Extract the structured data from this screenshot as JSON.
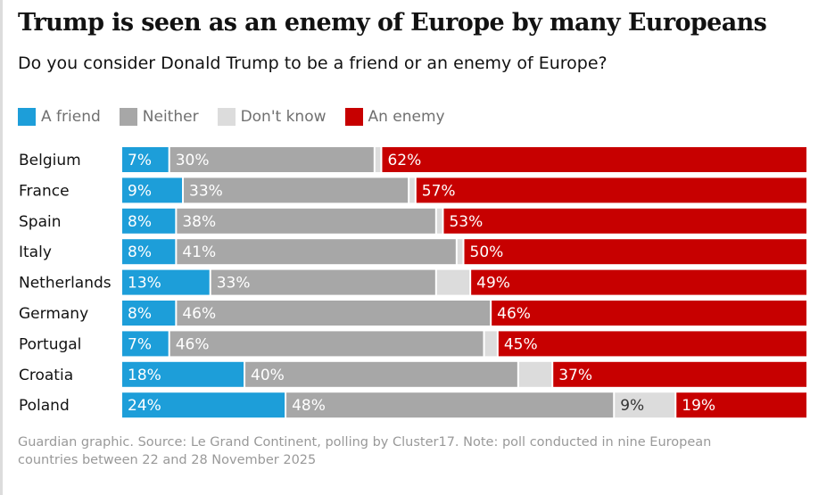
{
  "header": {
    "title": "Trump is seen as an enemy of Europe by many Europeans",
    "subtitle": "Do you consider Donald Trump to be a friend or an enemy of Europe?"
  },
  "colors": {
    "friend": "#1d9ed9",
    "neither": "#a7a7a7",
    "dont_know": "#dcdcdc",
    "enemy": "#c70000"
  },
  "legend": [
    {
      "label": "A friend",
      "color_key": "friend"
    },
    {
      "label": "Neither",
      "color_key": "neither"
    },
    {
      "label": "Don't know",
      "color_key": "dont_know"
    },
    {
      "label": "An enemy",
      "color_key": "enemy"
    }
  ],
  "chart_data": {
    "type": "bar",
    "orientation": "horizontal",
    "stacked": true,
    "unit": "%",
    "categories": [
      "Belgium",
      "France",
      "Spain",
      "Italy",
      "Netherlands",
      "Germany",
      "Portugal",
      "Croatia",
      "Poland"
    ],
    "series": [
      {
        "name": "A friend",
        "color_key": "friend",
        "values": [
          7,
          9,
          8,
          8,
          13,
          8,
          7,
          18,
          24
        ],
        "labels": [
          "7%",
          "9%",
          "8%",
          "8%",
          "13%",
          "8%",
          "7%",
          "18%",
          "24%"
        ]
      },
      {
        "name": "Neither",
        "color_key": "neither",
        "values": [
          30,
          33,
          38,
          41,
          33,
          46,
          46,
          40,
          48
        ],
        "labels": [
          "30%",
          "33%",
          "38%",
          "41%",
          "33%",
          "46%",
          "46%",
          "40%",
          "48%"
        ]
      },
      {
        "name": "Don't know",
        "color_key": "dont_know",
        "values": [
          1,
          1,
          1,
          1,
          5,
          0,
          2,
          5,
          9
        ],
        "labels": [
          "",
          "",
          "",
          "",
          "",
          "",
          "",
          "",
          "9%"
        ]
      },
      {
        "name": "An enemy",
        "color_key": "enemy",
        "values": [
          62,
          57,
          53,
          50,
          49,
          46,
          45,
          37,
          19
        ],
        "labels": [
          "62%",
          "57%",
          "53%",
          "50%",
          "49%",
          "46%",
          "45%",
          "37%",
          "19%"
        ]
      }
    ],
    "xlim": [
      0,
      100
    ],
    "legend_position": "top-left"
  },
  "footer": {
    "source": "Guardian graphic. Source: Le Grand Continent, polling by Cluster17. Note: poll conducted in nine European countries between 22 and 28 November 2025"
  }
}
